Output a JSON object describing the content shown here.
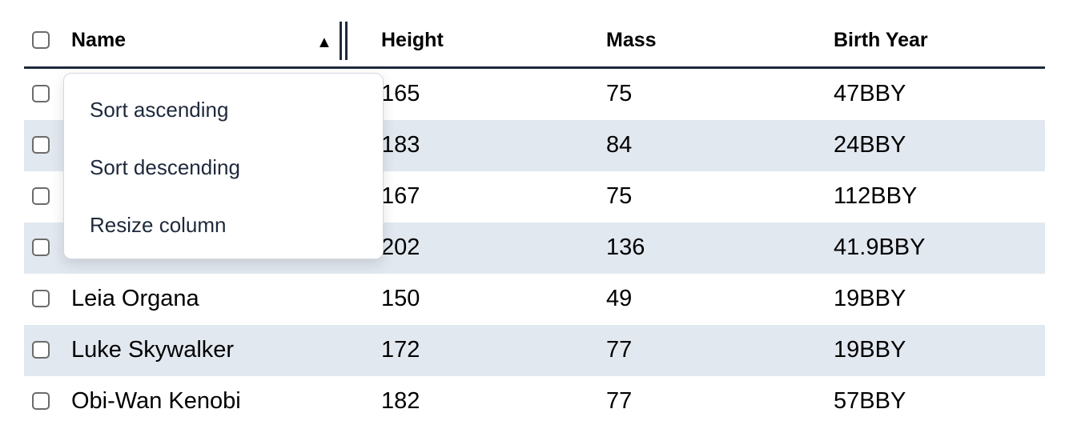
{
  "columns": [
    "Name",
    "Height",
    "Mass",
    "Birth Year"
  ],
  "sort": {
    "column": "Name",
    "direction": "ascending",
    "icon": "triangle-up-icon"
  },
  "rows": [
    {
      "name": "",
      "height": "165",
      "mass": "75",
      "birth_year": "47BBY"
    },
    {
      "name": "",
      "height": "183",
      "mass": "84",
      "birth_year": "24BBY"
    },
    {
      "name": "",
      "height": "167",
      "mass": "75",
      "birth_year": "112BBY"
    },
    {
      "name": "",
      "height": "202",
      "mass": "136",
      "birth_year": "41.9BBY"
    },
    {
      "name": "Leia Organa",
      "height": "150",
      "mass": "49",
      "birth_year": "19BBY"
    },
    {
      "name": "Luke Skywalker",
      "height": "172",
      "mass": "77",
      "birth_year": "19BBY"
    },
    {
      "name": "Obi-Wan Kenobi",
      "height": "182",
      "mass": "77",
      "birth_year": "57BBY"
    }
  ],
  "menu": {
    "items": [
      "Sort ascending",
      "Sort descending",
      "Resize column"
    ]
  }
}
